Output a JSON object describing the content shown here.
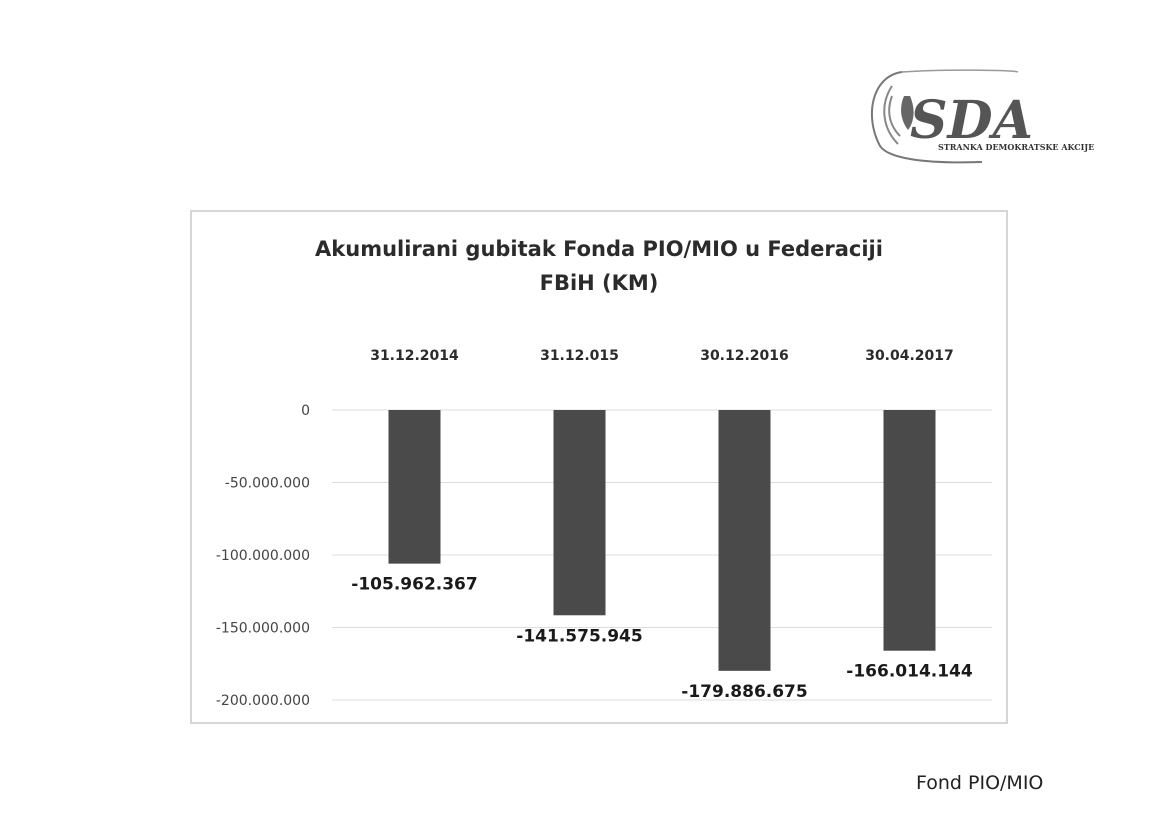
{
  "logo": {
    "mark_text": "SDA",
    "subtitle": "STRANKA DEMOKRATSKE AKCIJE",
    "color": "#555555"
  },
  "chart_data": {
    "type": "bar",
    "title": [
      "Akumulirani gubitak Fonda PIO/MIO u Federaciji",
      "FBiH (KM)"
    ],
    "categories": [
      "31.12.2014",
      "31.12.015",
      "30.12.2016",
      "30.04.2017"
    ],
    "values": [
      -105962367,
      -141575945,
      -179886675,
      -166014144
    ],
    "data_labels": [
      "-105.962.367",
      "-141.575.945",
      "-179.886.675",
      "-166.014.144"
    ],
    "yticks": [
      0,
      -50000000,
      -100000000,
      -150000000,
      -200000000
    ],
    "ytick_labels": [
      "0",
      "-50.000.000",
      "-100.000.000",
      "-150.000.000",
      "-200.000.000"
    ],
    "ylim": [
      -200000000,
      0
    ],
    "xlabel": "",
    "ylabel": "",
    "grid": true,
    "legend": "none",
    "bar_color": "#4a4a4a",
    "category_position": "top"
  },
  "footer": {
    "source": "Fond PIO/MIO"
  }
}
